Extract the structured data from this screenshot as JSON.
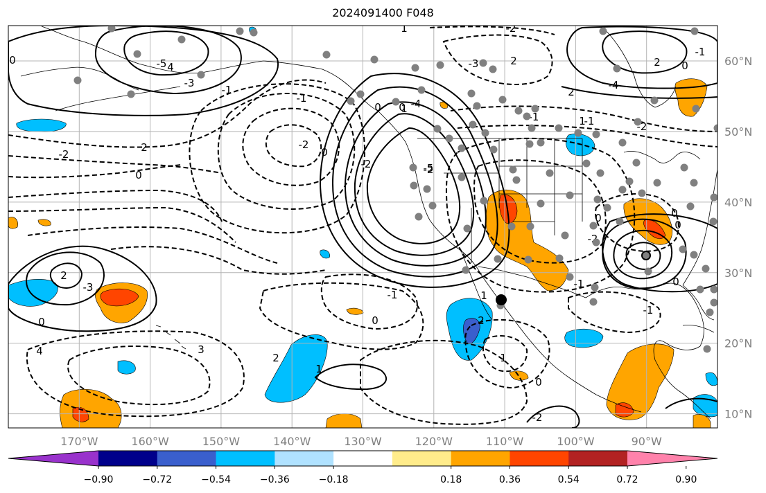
{
  "title": "2024091400 F048",
  "map": {
    "projection": "PlateCarree",
    "lon_range": [
      -180,
      -80
    ],
    "lat_range": [
      8,
      65
    ],
    "lat_ticks": [
      "10°N",
      "20°N",
      "30°N",
      "40°N",
      "50°N",
      "60°N"
    ],
    "lon_ticks": [
      "170°W",
      "160°W",
      "150°W",
      "140°W",
      "130°W",
      "120°W",
      "110°W",
      "100°W",
      "90°W"
    ],
    "contour_labels": [
      "1",
      "-2",
      "0",
      "-5",
      "4",
      "-3",
      "-1",
      "-2",
      "2",
      "0",
      "-1",
      "-2",
      "0",
      "-2",
      "0",
      "-4",
      "-5",
      "-3",
      "2",
      "2",
      "0",
      "-4",
      "2",
      "-1",
      "1",
      "-2",
      "-1",
      "2",
      "-3",
      "0",
      "4",
      "3",
      "2",
      "1",
      "-1",
      "0",
      "1",
      "2",
      "1",
      "0",
      "-2",
      "-1",
      "-2",
      "0",
      "-1",
      "0",
      "0",
      "0",
      "-2",
      "0",
      "1",
      "-1"
    ],
    "colors": {
      "coast": "#000000",
      "grid": "#b4b4b4",
      "station": "#808080",
      "contour": "#000000"
    }
  },
  "colorbar": {
    "labels": [
      "−0.90",
      "−0.72",
      "−0.54",
      "−0.36",
      "−0.18",
      "0.18",
      "0.36",
      "0.54",
      "0.72",
      "0.90"
    ],
    "colors": [
      "#9932cc",
      "#00008b",
      "#3a5fcd",
      "#00bfff",
      "#b0e2ff",
      "#ffffff",
      "#ffec8b",
      "#ffa500",
      "#ff4500",
      "#b22222",
      "#ff82ab"
    ]
  }
}
